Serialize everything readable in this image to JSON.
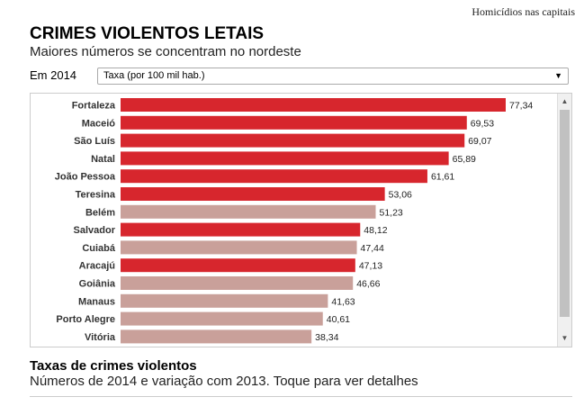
{
  "top_link": "Homicídios nas capitais",
  "header": {
    "title": "CRIMES VIOLENTOS LETAIS",
    "subtitle": "Maiores números se concentram no nordeste"
  },
  "filter": {
    "year_label": "Em 2014",
    "selected": "Taxa (por 100 mil hab.)"
  },
  "colors": {
    "highlight": "#d7262d",
    "normal": "#c9a09a"
  },
  "chart_data": {
    "type": "bar",
    "orientation": "horizontal",
    "categories": [
      "Fortaleza",
      "Maceió",
      "São Luís",
      "Natal",
      "João Pessoa",
      "Teresina",
      "Belém",
      "Salvador",
      "Cuiabá",
      "Aracajú",
      "Goiânia",
      "Manaus",
      "Porto Alegre",
      "Vitória"
    ],
    "values": [
      77.34,
      69.53,
      69.07,
      65.89,
      61.61,
      53.06,
      51.23,
      48.12,
      47.44,
      47.13,
      46.66,
      41.63,
      40.61,
      38.34
    ],
    "labels": [
      "77,34",
      "69,53",
      "69,07",
      "65,89",
      "61,61",
      "53,06",
      "51,23",
      "48,12",
      "47,44",
      "47,13",
      "46,66",
      "41,63",
      "40,61",
      "38,34"
    ],
    "highlighted": [
      true,
      true,
      true,
      true,
      true,
      true,
      false,
      true,
      false,
      true,
      false,
      false,
      false,
      false
    ],
    "xlim": [
      0,
      77.34
    ]
  },
  "section": {
    "title": "Taxas de crimes violentos",
    "subtitle": "Números de 2014 e variação com 2013. Toque para ver detalhes"
  }
}
